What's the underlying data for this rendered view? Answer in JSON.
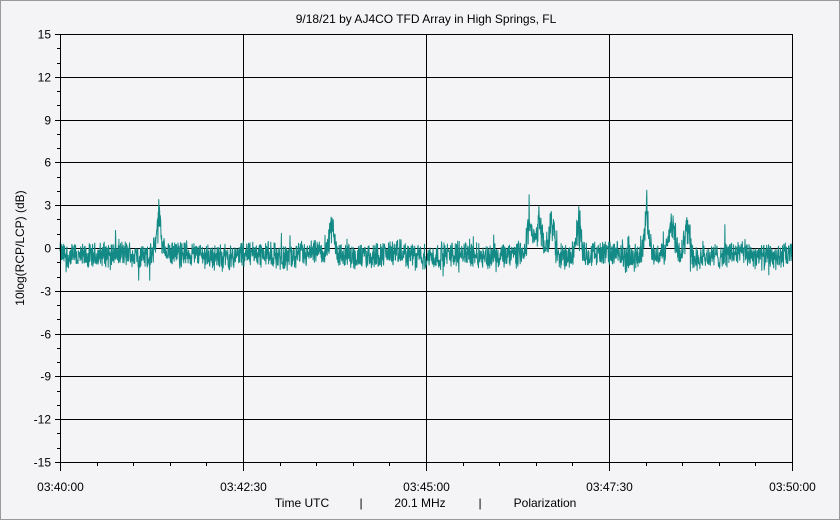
{
  "chart_data": {
    "type": "line",
    "title": "9/18/21  by  AJ4CO TFD Array  in  High Springs, FL",
    "ylabel": "10log(RCP/LCP) (dB)",
    "footer": {
      "xlabel": "Time UTC",
      "separator": "|",
      "frequency": "20.1 MHz",
      "quantity": "Polarization"
    },
    "x_range": [
      "03:40:00",
      "03:50:00"
    ],
    "xticks": [
      "03:40:00",
      "03:42:30",
      "03:45:00",
      "03:47:30",
      "03:50:00"
    ],
    "ylim": [
      -15,
      15
    ],
    "yticks": [
      "15",
      "12",
      "9",
      "6",
      "3",
      "0",
      "-3",
      "-6",
      "-9",
      "-12",
      "-15"
    ],
    "grid": true,
    "series": [
      {
        "color": "#138a85",
        "baseline_db": -0.5,
        "noise_amplitude_db": 0.8,
        "bursts": [
          {
            "time": "03:41:21",
            "peak_db": 4.0
          },
          {
            "time": "03:43:43",
            "peak_db": 2.5
          },
          {
            "time": "03:46:25",
            "peak_db": 3.5
          },
          {
            "time": "03:46:33",
            "peak_db": 3.5
          },
          {
            "time": "03:46:43",
            "peak_db": 3.3
          },
          {
            "time": "03:47:05",
            "peak_db": 3.2
          },
          {
            "time": "03:48:01",
            "peak_db": 4.0
          },
          {
            "time": "03:48:22",
            "peak_db": 3.4
          },
          {
            "time": "03:48:34",
            "peak_db": 2.9
          }
        ]
      }
    ]
  }
}
